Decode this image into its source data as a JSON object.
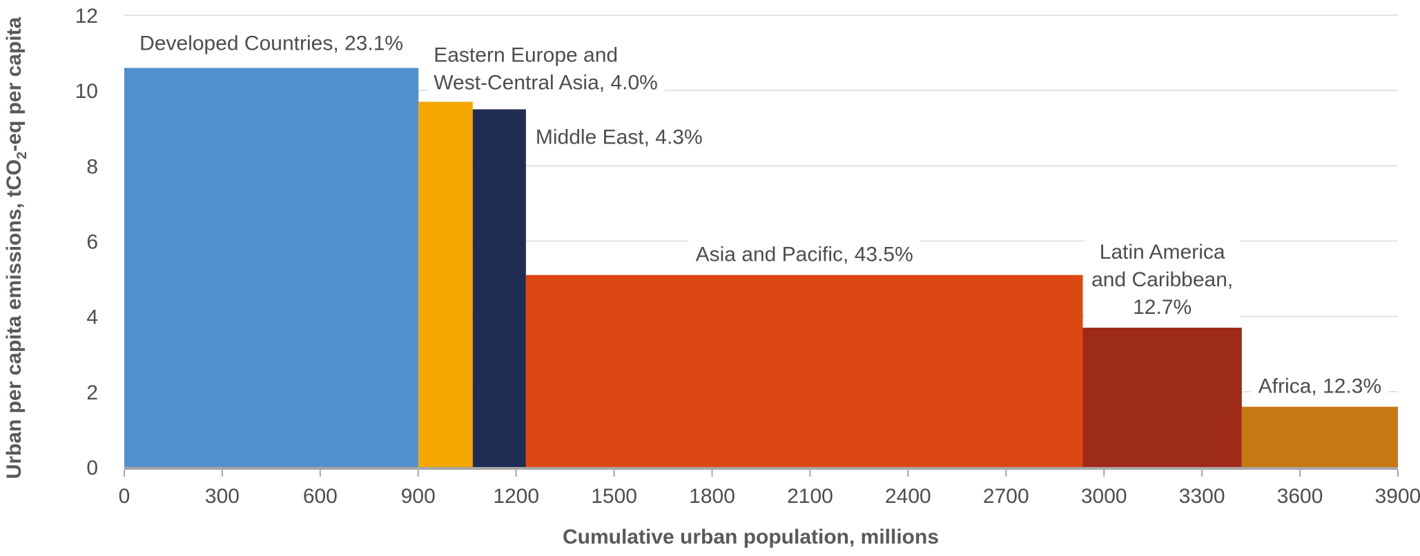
{
  "chart_data": {
    "type": "bar",
    "variant": "variable-width",
    "xlabel": "Cumulative urban population, millions",
    "ylabel": {
      "before": "Urban per capita emissions, tCO",
      "sub": "2",
      "after": "-eq per capita"
    },
    "xlim": [
      0,
      3900
    ],
    "ylim": [
      0,
      12
    ],
    "xticks": [
      0,
      300,
      600,
      900,
      1200,
      1500,
      1800,
      2100,
      2400,
      2700,
      3000,
      3300,
      3600,
      3900
    ],
    "yticks": [
      0,
      2,
      4,
      6,
      8,
      10,
      12
    ],
    "grid": "horizontal",
    "series": [
      {
        "lines": [
          "Developed Countries, 23.1%"
        ],
        "x0": 0,
        "x1": 901,
        "value": 10.6,
        "color": "#5290cd",
        "label_anchor": "middle"
      },
      {
        "lines": [
          "Eastern Europe and",
          "West-Central Asia, 4.0%"
        ],
        "x0": 901,
        "x1": 1067,
        "value": 9.7,
        "color": "#f4a700",
        "label_anchor": "start"
      },
      {
        "lines": [
          "Middle East, 4.3%"
        ],
        "x0": 1067,
        "x1": 1230,
        "value": 9.5,
        "color": "#1f2d55",
        "label_anchor": "start"
      },
      {
        "lines": [
          "Asia and Pacific, 43.5%"
        ],
        "x0": 1230,
        "x1": 2935,
        "value": 5.1,
        "color": "#dc4813",
        "label_anchor": "middle"
      },
      {
        "lines": [
          "Latin America",
          "and Caribbean,",
          "12.7%"
        ],
        "x0": 2935,
        "x1": 3422,
        "value": 3.7,
        "color": "#9e2a19",
        "label_anchor": "middle"
      },
      {
        "lines": [
          "Africa, 12.3%"
        ],
        "x0": 3422,
        "x1": 3900,
        "value": 1.6,
        "color": "#c87813",
        "label_anchor": "middle"
      }
    ]
  }
}
